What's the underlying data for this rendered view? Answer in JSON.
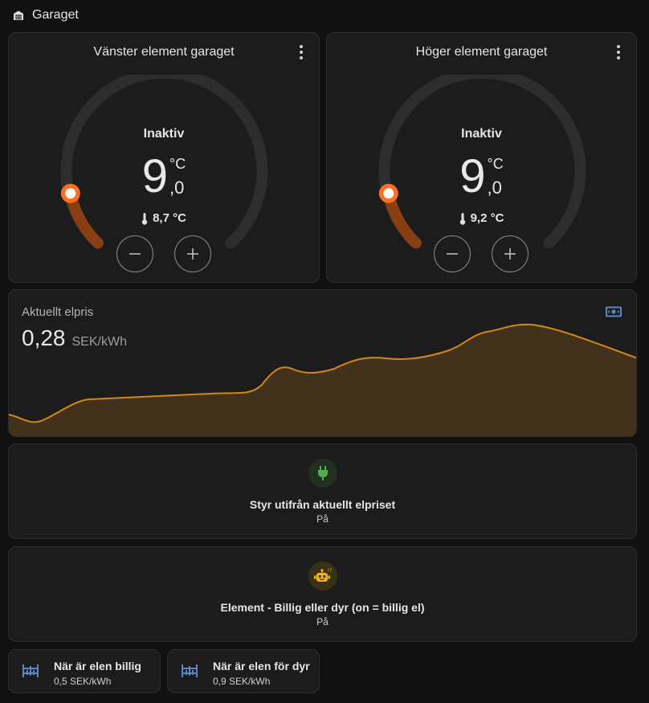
{
  "header": {
    "title": "Garaget",
    "icon": "garage-icon"
  },
  "thermostats": [
    {
      "name": "Vänster element garaget",
      "state": "Inaktiv",
      "target_int": "9",
      "target_dec": ",0",
      "unit": "°C",
      "current": "8,7 °C"
    },
    {
      "name": "Höger element garaget",
      "state": "Inaktiv",
      "target_int": "9",
      "target_dec": ",0",
      "unit": "°C",
      "current": "9,2 °C"
    }
  ],
  "price": {
    "label": "Aktuellt elpris",
    "value": "0,28",
    "unit": "SEK/kWh",
    "line_color": "#d3861a"
  },
  "entities": [
    {
      "name": "Styr utifrån aktuellt elpriset",
      "state": "På",
      "icon": "power-plug-icon",
      "color": "#4caf50"
    },
    {
      "name": "Element - Billig eller dyr (on = billig el)",
      "state": "På",
      "icon": "robot-icon",
      "color": "#f2b515"
    }
  ],
  "small_cards": [
    {
      "name": "När är elen billig",
      "value": "0,5 SEK/kWh",
      "icon": "threshold-icon"
    },
    {
      "name": "När är elen för dyr",
      "value": "0,9 SEK/kWh",
      "icon": "threshold-icon"
    }
  ],
  "colors": {
    "accent_heat": "#ff6f22",
    "icon_blue": "#5b86c5"
  }
}
